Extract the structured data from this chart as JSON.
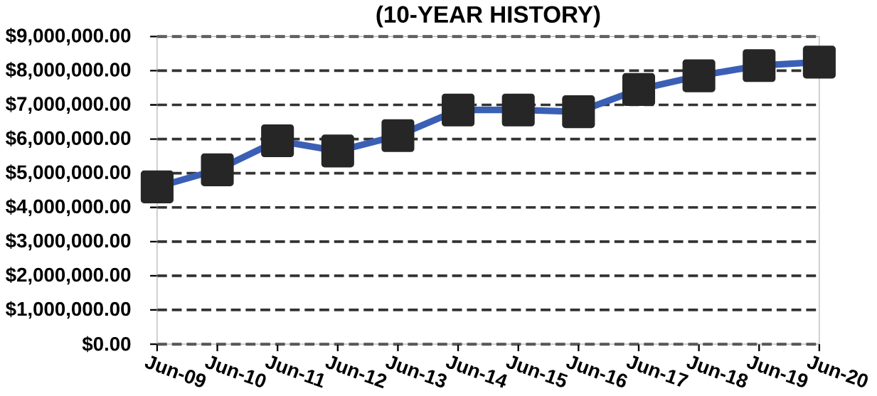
{
  "chart_data": {
    "type": "line",
    "title": "(10-YEAR HISTORY)",
    "categories": [
      "Jun-09",
      "Jun-10",
      "Jun-11",
      "Jun-12",
      "Jun-13",
      "Jun-14",
      "Jun-15",
      "Jun-16",
      "Jun-17",
      "Jun-18",
      "Jun-19",
      "Jun-20"
    ],
    "series": [
      {
        "color": "#3a5fb5",
        "values": [
          4600000,
          5100000,
          5950000,
          5650000,
          6100000,
          6850000,
          6850000,
          6800000,
          7450000,
          7850000,
          8150000,
          8250000
        ]
      }
    ],
    "ylim": [
      0,
      9000000
    ],
    "yticks": [
      {
        "value": 0,
        "label": "$0.00"
      },
      {
        "value": 1000000,
        "label": "$1,000,000.00"
      },
      {
        "value": 2000000,
        "label": "$2,000,000.00"
      },
      {
        "value": 3000000,
        "label": "$3,000,000.00"
      },
      {
        "value": 4000000,
        "label": "$4,000,000.00"
      },
      {
        "value": 5000000,
        "label": "$5,000,000.00"
      },
      {
        "value": 6000000,
        "label": "$6,000,000.00"
      },
      {
        "value": 7000000,
        "label": "$7,000,000.00"
      },
      {
        "value": 8000000,
        "label": "$8,000,000.00"
      },
      {
        "value": 9000000,
        "label": "$9,000,000.00"
      }
    ],
    "grid": "y",
    "marker": "square",
    "line_style": "solid"
  }
}
